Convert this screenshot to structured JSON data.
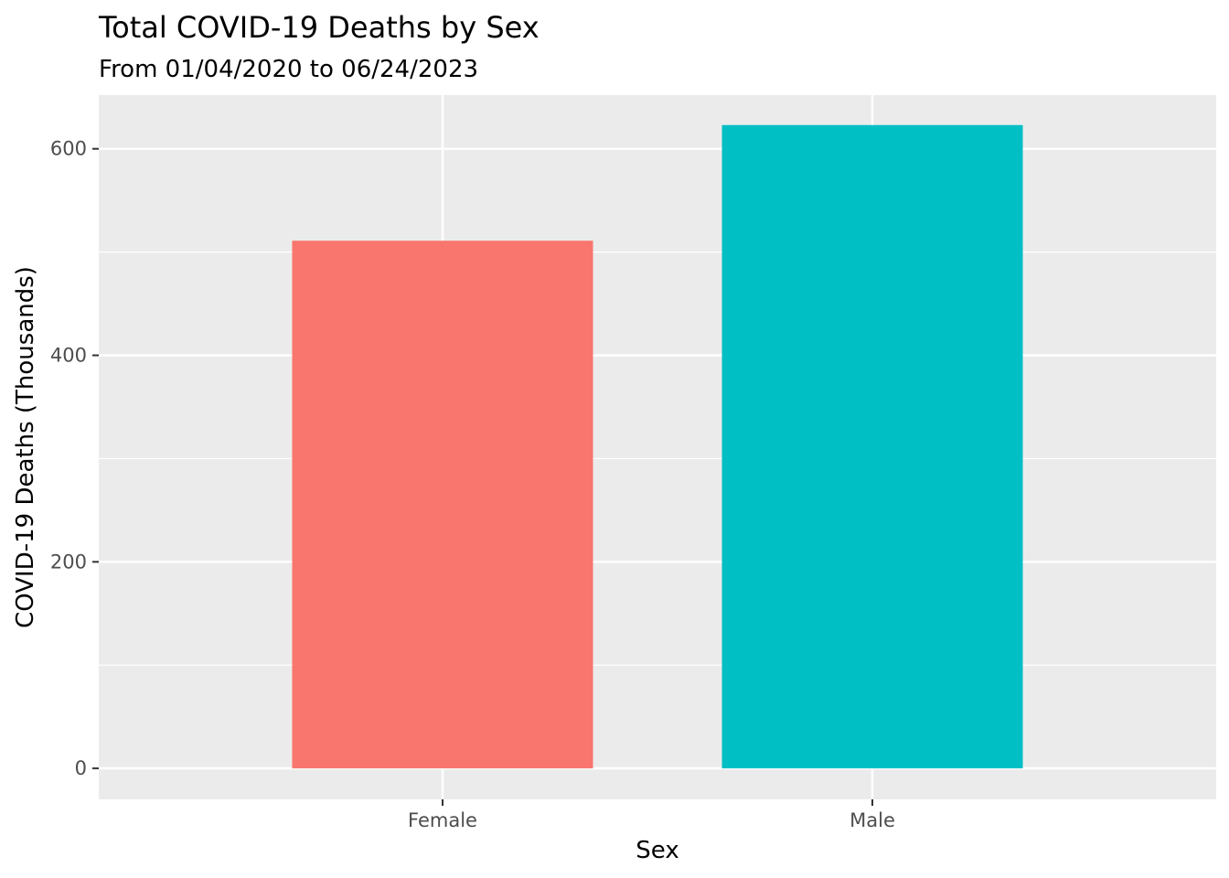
{
  "chart_data": {
    "type": "bar",
    "title": "Total COVID-19 Deaths by Sex",
    "subtitle": "From 01/04/2020 to 06/24/2023",
    "xlabel": "Sex",
    "ylabel": "COVID-19 Deaths (Thousands)",
    "categories": [
      "Female",
      "Male"
    ],
    "values": [
      511,
      623
    ],
    "bar_colors": [
      "#F8766D",
      "#00BFC4"
    ],
    "ylim": [
      -30,
      652
    ],
    "yticks": [
      0,
      200,
      400,
      600
    ],
    "ytick_labels": [
      "0",
      "200",
      "400",
      "600"
    ],
    "minor_yticks": [
      100,
      300,
      500
    ],
    "grid": true,
    "legend": "none",
    "panel_background": "#EBEBEB",
    "gridline_color": "#FFFFFF"
  }
}
